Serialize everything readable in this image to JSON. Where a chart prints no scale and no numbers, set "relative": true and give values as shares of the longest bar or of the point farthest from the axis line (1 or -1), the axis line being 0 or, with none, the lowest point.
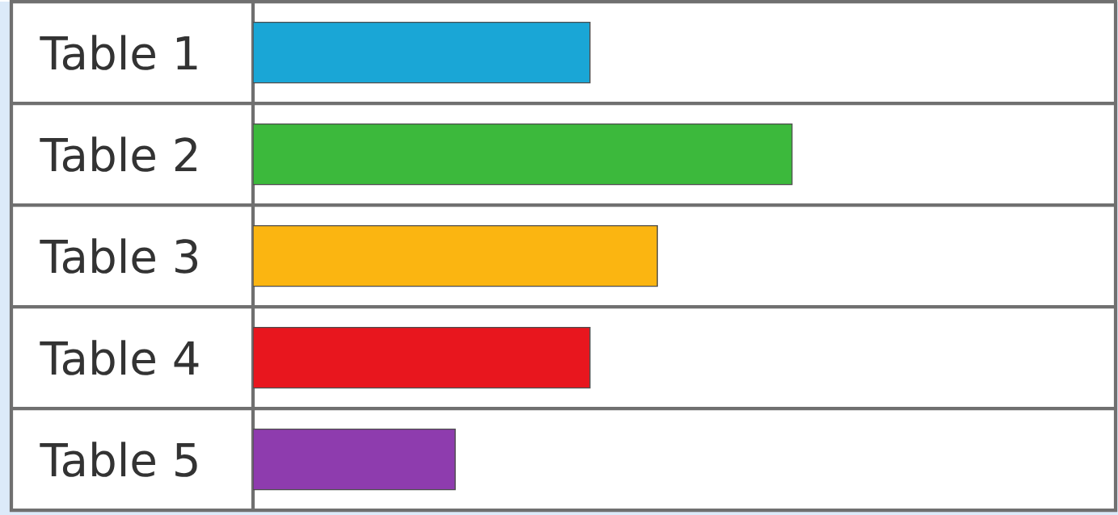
{
  "chart_data": {
    "type": "bar",
    "orientation": "horizontal",
    "relative": true,
    "categories": [
      "Table 1",
      "Table 2",
      "Table 3",
      "Table 4",
      "Table 5"
    ],
    "values": [
      0.625,
      1,
      0.75,
      0.625,
      0.375
    ],
    "colors": [
      "#1aa6d6",
      "#3cb93c",
      "#fbb511",
      "#e8161e",
      "#8e3cae"
    ]
  }
}
